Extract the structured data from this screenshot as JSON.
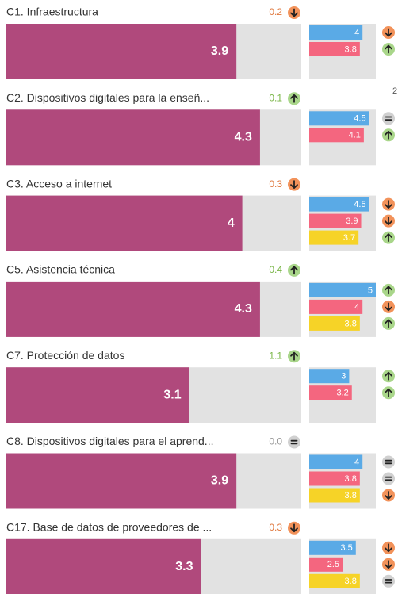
{
  "xlim": [
    0,
    5
  ],
  "comparison_colors": [
    "#5aaae6",
    "#f4667f",
    "#f6d327"
  ],
  "side_note": "2",
  "rows": [
    {
      "label": "C1. Infraestructura",
      "delta": 0.2,
      "delta_direction": "down",
      "value": 3.9,
      "comparisons": [
        {
          "value": 4,
          "direction": "down"
        },
        {
          "value": 3.8,
          "direction": "up"
        }
      ]
    },
    {
      "label": "C2. Dispositivos digitales para la enseñ...",
      "delta": 0.1,
      "delta_direction": "up",
      "value": 4.3,
      "comparisons": [
        {
          "value": 4.5,
          "direction": "equal"
        },
        {
          "value": 4.1,
          "direction": "up"
        }
      ]
    },
    {
      "label": "C3. Acceso a internet",
      "delta": 0.3,
      "delta_direction": "down",
      "value": 4,
      "comparisons": [
        {
          "value": 4.5,
          "direction": "down"
        },
        {
          "value": 3.9,
          "direction": "down"
        },
        {
          "value": 3.7,
          "direction": "up"
        }
      ]
    },
    {
      "label": "C5. Asistencia técnica",
      "delta": 0.4,
      "delta_direction": "up",
      "value": 4.3,
      "comparisons": [
        {
          "value": 5,
          "direction": "up"
        },
        {
          "value": 4,
          "direction": "down"
        },
        {
          "value": 3.8,
          "direction": "up"
        }
      ]
    },
    {
      "label": "C7. Protección de datos",
      "delta": 1.1,
      "delta_direction": "up",
      "value": 3.1,
      "comparisons": [
        {
          "value": 3,
          "direction": "up"
        },
        {
          "value": 3.2,
          "direction": "up"
        }
      ]
    },
    {
      "label": "C8. Dispositivos digitales para el aprend...",
      "delta": {
        "value": 0,
        "label": "0.0"
      },
      "delta_direction": "equal",
      "value": 3.9,
      "comparisons": [
        {
          "value": 4,
          "direction": "equal"
        },
        {
          "value": 3.8,
          "direction": "equal"
        },
        {
          "value": 3.8,
          "direction": "down"
        }
      ]
    },
    {
      "label": "C17. Base de datos de proveedores de ...",
      "delta": 0.3,
      "delta_direction": "down",
      "value": 3.3,
      "comparisons": [
        {
          "value": 3.5,
          "direction": "down"
        },
        {
          "value": 2.5,
          "direction": "down"
        },
        {
          "value": 3.8,
          "direction": "equal"
        }
      ]
    }
  ]
}
